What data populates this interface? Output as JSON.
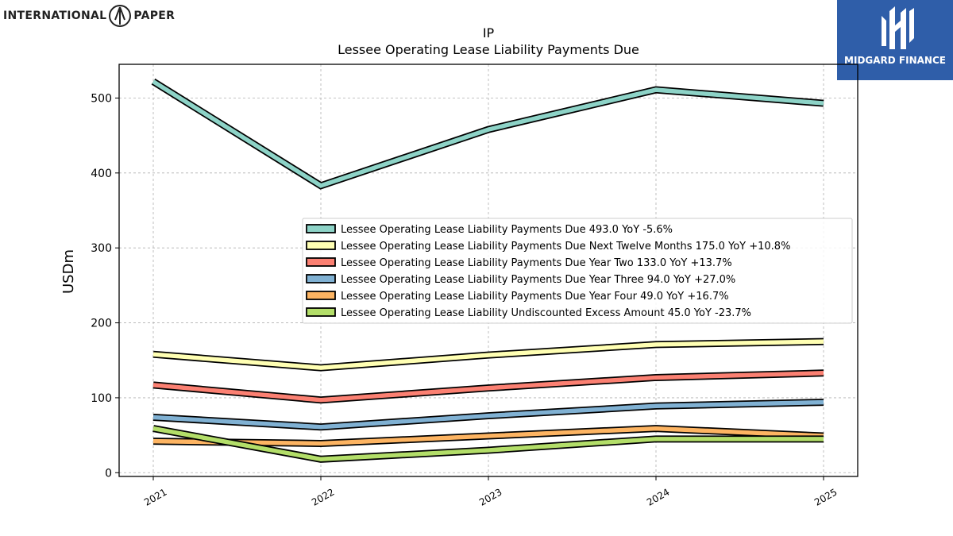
{
  "brand": {
    "left_word_1": "INTERNATIONAL",
    "left_word_2": "PAPER",
    "right_name": "MIDGARD FINANCE",
    "right_color": "#2f5ea9"
  },
  "chart_data": {
    "type": "line",
    "title": "IP",
    "subtitle": "Lessee Operating Lease Liability Payments Due",
    "ylabel": "USDm",
    "xlabel": "",
    "x": [
      "2021",
      "2022",
      "2023",
      "2024",
      "2025"
    ],
    "ylim": [
      -5,
      545
    ],
    "yticks": [
      0,
      100,
      200,
      300,
      400,
      500
    ],
    "grid": true,
    "legend_position": "center-right",
    "series": [
      {
        "name": "Lessee Operating Lease Liability Payments Due",
        "legend": "Lessee Operating Lease Liability Payments Due  493.0 YoY -5.6%",
        "color": "#8dd3c7",
        "values": [
          522,
          383,
          458,
          511,
          493
        ]
      },
      {
        "name": "Lessee Operating Lease Liability Payments Due Next Twelve Months",
        "legend": "Lessee Operating Lease Liability Payments Due Next Twelve Months  175.0 YoY +10.8%",
        "color": "#ffffb3",
        "values": [
          158,
          140,
          157,
          171,
          175
        ]
      },
      {
        "name": "Lessee Operating Lease Liability Payments Due Year Two",
        "legend": "Lessee Operating Lease Liability Payments Due Year Two  133.0 YoY +13.7%",
        "color": "#fb8072",
        "values": [
          117,
          97,
          113,
          127,
          133
        ]
      },
      {
        "name": "Lessee Operating Lease Liability Payments Due Year Three",
        "legend": "Lessee Operating Lease Liability Payments Due Year Three  94.0 YoY +27.0%",
        "color": "#80b1d3",
        "values": [
          74,
          61,
          76,
          89,
          94
        ]
      },
      {
        "name": "Lessee Operating Lease Liability Payments Due Year Four",
        "legend": "Lessee Operating Lease Liability Payments Due Year Four  49.0 YoY +16.7%",
        "color": "#fdb462",
        "values": [
          42,
          39,
          49,
          59,
          49
        ]
      },
      {
        "name": "Lessee Operating Lease Liability Undiscounted Excess Amount",
        "legend": "Lessee Operating Lease Liability Undiscounted Excess Amount  45.0 YoY -23.7%",
        "color": "#b3de69",
        "values": [
          59,
          18,
          30,
          45,
          45
        ]
      }
    ]
  }
}
